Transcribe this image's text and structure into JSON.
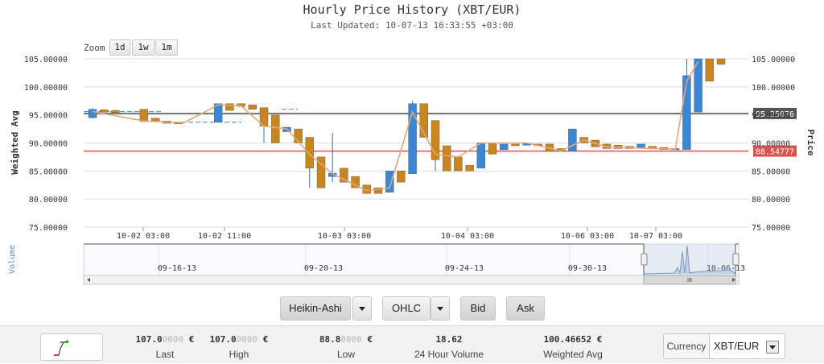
{
  "header": {
    "title": "Hourly Price History (XBT/EUR)",
    "subtitle": "Last Updated: 10-07-13 16:33:55 +03:00"
  },
  "zoom": {
    "label": "Zoom",
    "buttons": [
      "1d",
      "1w",
      "1m"
    ]
  },
  "chart_data": {
    "type": "candlestick",
    "ylabel_left": "Weighted Avg",
    "ylabel_right": "Price",
    "ylim": [
      75,
      105
    ],
    "y_ticks": [
      "105.00000",
      "100.00000",
      "95.00000",
      "90.00000",
      "85.00000",
      "80.00000",
      "75.00000"
    ],
    "x_ticks": [
      "10-02 03:00",
      "10-02 11:00",
      "10-03 03:00",
      "10-04 03:00",
      "10-06 03:00",
      "10-07 03:00"
    ],
    "price_markers": [
      {
        "label": "95.25076",
        "value": 95.25,
        "color": "#555555"
      },
      {
        "label": "88.54777",
        "value": 88.55,
        "color": "#d9534f"
      }
    ],
    "candles": [
      {
        "i": 0.0,
        "open": 94.5,
        "close": 96.0,
        "high": 96.2,
        "low": 94.4,
        "color": "blue"
      },
      {
        "i": 1.0,
        "open": 95.9,
        "close": 95.5,
        "high": 96.0,
        "low": 95.4,
        "color": "orange"
      },
      {
        "i": 2.0,
        "open": 95.8,
        "close": 95.4,
        "high": 95.9,
        "low": 95.4,
        "color": "orange"
      },
      {
        "i": 4.5,
        "open": 96.0,
        "close": 93.8,
        "high": 96.0,
        "low": 93.8,
        "color": "orange"
      },
      {
        "i": 5.5,
        "open": 94.4,
        "close": 93.8,
        "high": 94.4,
        "low": 93.8,
        "color": "orange"
      },
      {
        "i": 6.5,
        "open": 93.9,
        "close": 93.5,
        "high": 93.9,
        "low": 93.5,
        "color": "orange"
      },
      {
        "i": 7.5,
        "open": 93.7,
        "close": 93.4,
        "high": 93.7,
        "low": 93.4,
        "color": "orange"
      },
      {
        "i": 11.0,
        "open": 93.7,
        "close": 97.0,
        "high": 97.0,
        "low": 93.7,
        "color": "blue"
      },
      {
        "i": 12.0,
        "open": 97.0,
        "close": 95.8,
        "high": 97.0,
        "low": 95.8,
        "color": "orange"
      },
      {
        "i": 13.0,
        "open": 97.0,
        "close": 96.5,
        "high": 97.0,
        "low": 96.5,
        "color": "orange"
      },
      {
        "i": 14.0,
        "open": 96.8,
        "close": 96.0,
        "high": 96.8,
        "low": 96.0,
        "color": "orange"
      },
      {
        "i": 15.0,
        "open": 96.3,
        "close": 93.0,
        "high": 96.3,
        "low": 90.0,
        "color": "orange"
      },
      {
        "i": 16.0,
        "open": 95.0,
        "close": 90.0,
        "high": 95.0,
        "low": 90.0,
        "color": "orange"
      },
      {
        "i": 17.0,
        "open": 92.0,
        "close": 92.8,
        "high": 92.8,
        "low": 92.0,
        "color": "blue"
      },
      {
        "i": 18.0,
        "open": 92.5,
        "close": 90.0,
        "high": 92.5,
        "low": 90.0,
        "color": "orange"
      },
      {
        "i": 19.0,
        "open": 91.0,
        "close": 85.5,
        "high": 91.0,
        "low": 82.0,
        "color": "orange"
      },
      {
        "i": 20.0,
        "open": 87.5,
        "close": 82.0,
        "high": 87.5,
        "low": 82.0,
        "color": "orange"
      },
      {
        "i": 21.0,
        "open": 84.0,
        "close": 84.6,
        "high": 91.8,
        "low": 83.0,
        "color": "blue"
      },
      {
        "i": 22.0,
        "open": 85.5,
        "close": 83.0,
        "high": 85.5,
        "low": 83.0,
        "color": "orange"
      },
      {
        "i": 23.0,
        "open": 84.0,
        "close": 82.0,
        "high": 84.0,
        "low": 82.0,
        "color": "orange"
      },
      {
        "i": 24.0,
        "open": 82.5,
        "close": 81.0,
        "high": 82.5,
        "low": 81.0,
        "color": "orange"
      },
      {
        "i": 25.0,
        "open": 82.0,
        "close": 81.0,
        "high": 82.0,
        "low": 81.0,
        "color": "orange"
      },
      {
        "i": 26.0,
        "open": 81.2,
        "close": 85.0,
        "high": 85.0,
        "low": 81.2,
        "color": "blue"
      },
      {
        "i": 27.0,
        "open": 85.0,
        "close": 83.0,
        "high": 85.0,
        "low": 83.0,
        "color": "orange"
      },
      {
        "i": 28.0,
        "open": 84.5,
        "close": 97.0,
        "high": 97.5,
        "low": 84.5,
        "color": "blue"
      },
      {
        "i": 29.0,
        "open": 97.0,
        "close": 91.0,
        "high": 97.0,
        "low": 91.0,
        "color": "orange"
      },
      {
        "i": 30.0,
        "open": 94.0,
        "close": 87.0,
        "high": 94.0,
        "low": 85.0,
        "color": "orange"
      },
      {
        "i": 31.0,
        "open": 89.5,
        "close": 85.0,
        "high": 89.5,
        "low": 85.0,
        "color": "orange"
      },
      {
        "i": 32.0,
        "open": 87.5,
        "close": 85.0,
        "high": 87.5,
        "low": 85.0,
        "color": "orange"
      },
      {
        "i": 33.0,
        "open": 86.0,
        "close": 85.0,
        "high": 86.0,
        "low": 85.0,
        "color": "orange"
      },
      {
        "i": 34.0,
        "open": 85.5,
        "close": 90.0,
        "high": 90.0,
        "low": 85.5,
        "color": "blue"
      },
      {
        "i": 35.0,
        "open": 90.0,
        "close": 88.0,
        "high": 90.0,
        "low": 88.0,
        "color": "orange"
      },
      {
        "i": 36.0,
        "open": 88.8,
        "close": 89.8,
        "high": 89.8,
        "low": 88.8,
        "color": "blue"
      },
      {
        "i": 37.0,
        "open": 89.8,
        "close": 89.5,
        "high": 89.8,
        "low": 89.5,
        "color": "orange"
      },
      {
        "i": 38.0,
        "open": 89.6,
        "close": 89.9,
        "high": 89.9,
        "low": 89.6,
        "color": "blue"
      },
      {
        "i": 39.0,
        "open": 89.8,
        "close": 89.5,
        "high": 89.8,
        "low": 89.5,
        "color": "orange"
      },
      {
        "i": 40.0,
        "open": 89.8,
        "close": 88.5,
        "high": 89.8,
        "low": 88.5,
        "color": "orange"
      },
      {
        "i": 41.0,
        "open": 89.0,
        "close": 88.5,
        "high": 89.0,
        "low": 88.5,
        "color": "orange"
      },
      {
        "i": 42.0,
        "open": 88.5,
        "close": 92.5,
        "high": 92.5,
        "low": 88.5,
        "color": "blue"
      },
      {
        "i": 43.0,
        "open": 91.0,
        "close": 90.0,
        "high": 91.0,
        "low": 90.0,
        "color": "orange"
      },
      {
        "i": 44.0,
        "open": 90.5,
        "close": 89.3,
        "high": 90.5,
        "low": 89.3,
        "color": "orange"
      },
      {
        "i": 45.0,
        "open": 89.8,
        "close": 89.0,
        "high": 89.8,
        "low": 89.0,
        "color": "orange"
      },
      {
        "i": 46.0,
        "open": 89.6,
        "close": 89.0,
        "high": 89.6,
        "low": 89.0,
        "color": "orange"
      },
      {
        "i": 47.0,
        "open": 89.4,
        "close": 89.0,
        "high": 89.4,
        "low": 89.0,
        "color": "orange"
      },
      {
        "i": 48.0,
        "open": 89.2,
        "close": 89.8,
        "high": 89.8,
        "low": 89.2,
        "color": "blue"
      },
      {
        "i": 49.0,
        "open": 89.4,
        "close": 89.0,
        "high": 89.4,
        "low": 89.0,
        "color": "orange"
      },
      {
        "i": 50.0,
        "open": 89.2,
        "close": 88.8,
        "high": 89.2,
        "low": 88.8,
        "color": "orange"
      },
      {
        "i": 51.0,
        "open": 88.8,
        "close": 89.0,
        "high": 89.0,
        "low": 88.8,
        "color": "blue"
      },
      {
        "i": 52.0,
        "open": 88.8,
        "close": 102.0,
        "high": 105.0,
        "low": 88.8,
        "color": "blue"
      },
      {
        "i": 53.0,
        "open": 95.5,
        "close": 105.0,
        "high": 105.0,
        "low": 95.5,
        "color": "blue"
      },
      {
        "i": 54.0,
        "open": 105.0,
        "close": 101.0,
        "high": 105.0,
        "low": 101.0,
        "color": "orange"
      },
      {
        "i": 55.0,
        "open": 105.0,
        "close": 104.0,
        "high": 105.0,
        "low": 104.0,
        "color": "orange"
      }
    ],
    "weighted_avg": [
      [
        0.0,
        95.6
      ],
      [
        4.5,
        93.9
      ],
      [
        8.0,
        93.6
      ],
      [
        11.0,
        96.8
      ],
      [
        13.0,
        96.6
      ],
      [
        15.0,
        93.0
      ],
      [
        17.0,
        92.5
      ],
      [
        19.0,
        88.0
      ],
      [
        21.0,
        84.5
      ],
      [
        24.0,
        81.5
      ],
      [
        26.0,
        82.0
      ],
      [
        28.0,
        95.5
      ],
      [
        30.0,
        88.0
      ],
      [
        32.0,
        87.5
      ],
      [
        34.0,
        90.0
      ],
      [
        38.0,
        90.0
      ],
      [
        41.0,
        88.6
      ],
      [
        43.0,
        90.5
      ],
      [
        45.0,
        89.3
      ],
      [
        49.0,
        89.0
      ],
      [
        51.0,
        88.9
      ],
      [
        52.0,
        101.0
      ],
      [
        53.0,
        104.5
      ]
    ],
    "navigator": {
      "ylabel": "Volume",
      "x_ticks": [
        "09-16-13",
        "09-20-13",
        "09-24-13",
        "09-30-13",
        "10-06-13"
      ],
      "window_start_fraction": 0.855,
      "window_end_fraction": 0.995
    }
  },
  "controls": {
    "chart_type": "Heikin-Ashi",
    "price_type": "OHLC",
    "bid": "Bid",
    "ask": "Ask"
  },
  "footer": {
    "stats": [
      {
        "value": "107.0",
        "dim": "0000",
        "unit": " €",
        "label": "Last"
      },
      {
        "value": "107.0",
        "dim": "0000",
        "unit": " €",
        "label": "High"
      },
      {
        "value": "88.8",
        "dim": "0000",
        "unit": " €",
        "label": "Low"
      },
      {
        "value": "18.62",
        "dim": "",
        "unit": "",
        "label": "24 Hour Volume"
      },
      {
        "value": "100.46652",
        "dim": "",
        "unit": " €",
        "label": "Weighted Avg"
      }
    ],
    "currency_label": "Currency",
    "currency_value": "XBT/EUR"
  },
  "colors": {
    "up": "#3a87d6",
    "down": "#c9861e",
    "avg_line": "#e2a77a",
    "dashed_line": "#5aa0c8",
    "grid": "#dddddd"
  }
}
